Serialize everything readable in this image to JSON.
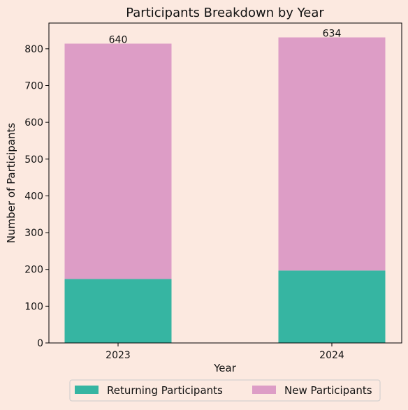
{
  "chart_data": {
    "type": "bar",
    "stacked": true,
    "title": "Participants Breakdown by Year",
    "xlabel": "Year",
    "ylabel": "Number of Participants",
    "categories": [
      "2023",
      "2024"
    ],
    "ylim": [
      0,
      870
    ],
    "yticks": [
      0,
      100,
      200,
      300,
      400,
      500,
      600,
      700,
      800
    ],
    "series": [
      {
        "name": "Returning Participants",
        "values": [
          174,
          197
        ],
        "color": "#36b5a2"
      },
      {
        "name": "New Participants",
        "values": [
          640,
          634
        ],
        "color": "#dd9dc6"
      }
    ],
    "legend_position": "bottom-center",
    "grid": false
  }
}
